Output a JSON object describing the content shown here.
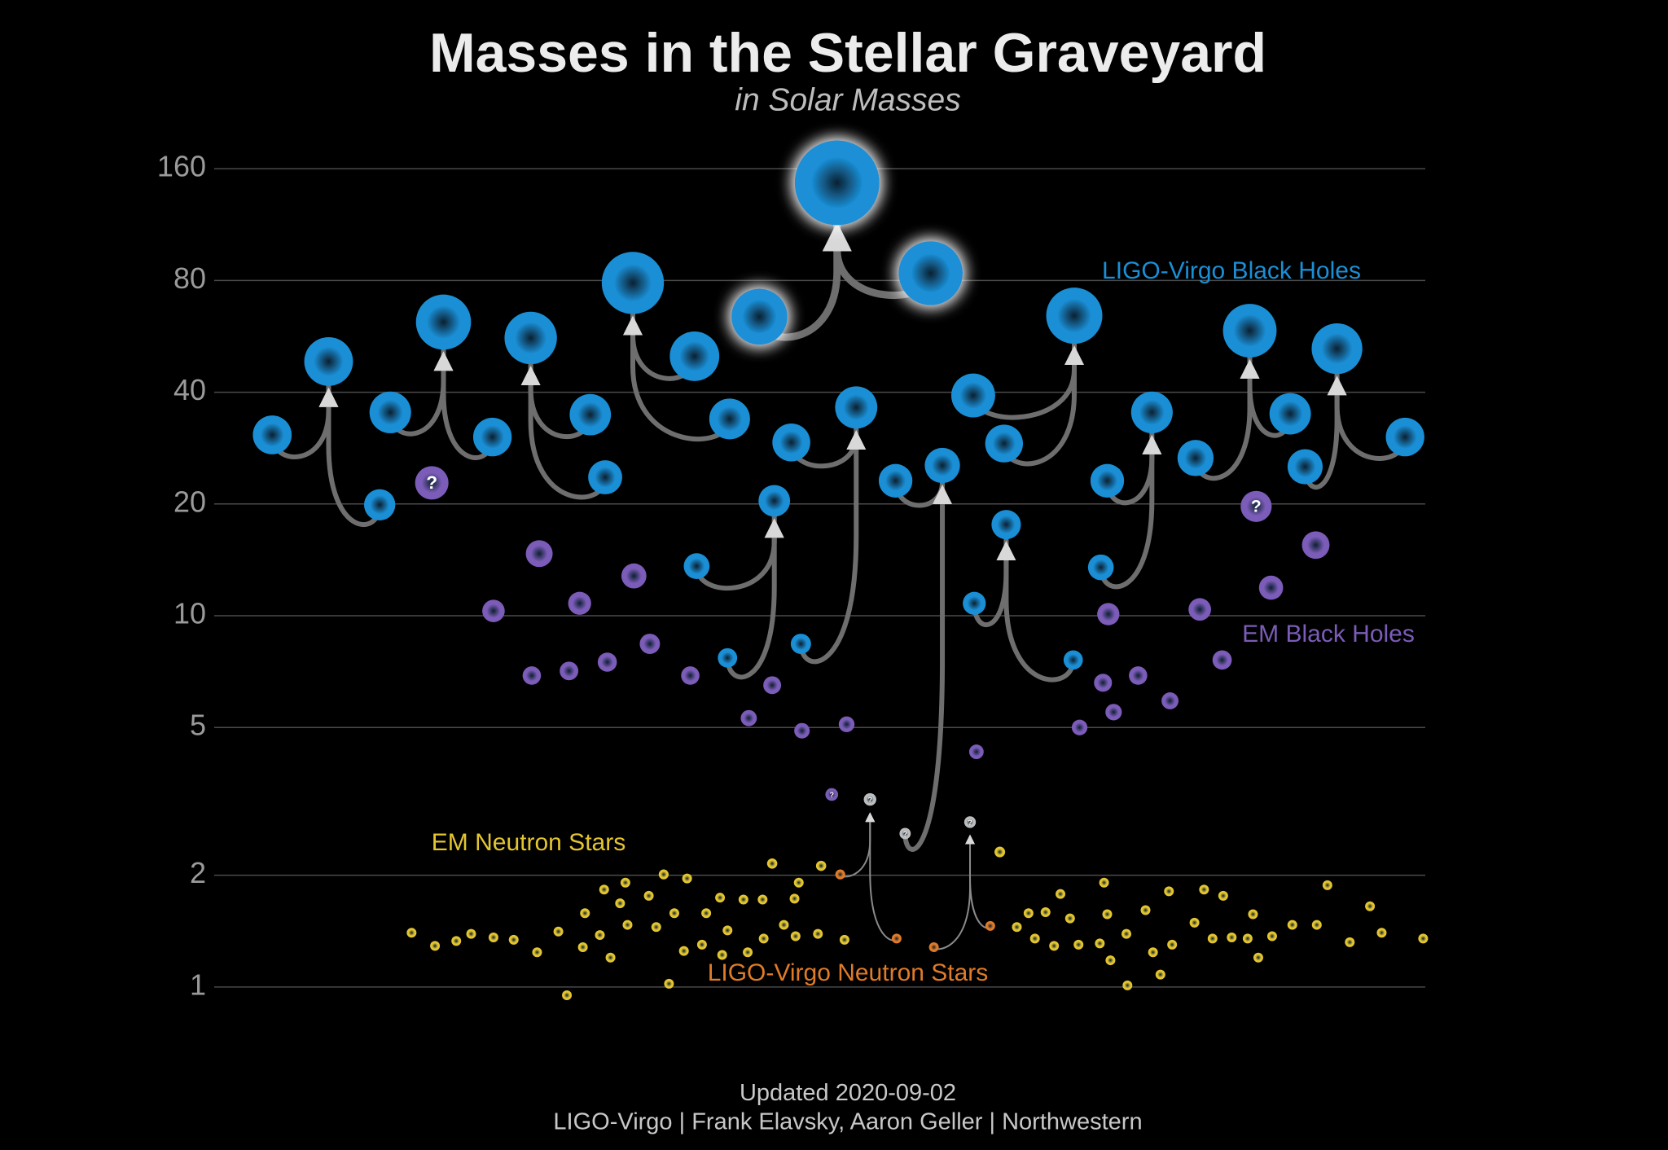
{
  "chart_data": {
    "type": "scatter",
    "title": "Masses in the Stellar Graveyard",
    "subtitle": "in Solar Masses",
    "log_y": true,
    "grid": true,
    "xlim": [
      0,
      116
    ],
    "ylim": [
      0.8,
      200
    ],
    "yticks": [
      1,
      2,
      5,
      10,
      20,
      40,
      80,
      160
    ],
    "series": [
      {
        "name": "LIGO-Virgo Black Holes",
        "color": "#1a8fd6",
        "arrow_color": "#6e6e6e",
        "mergers": [
          {
            "x": [
              7.6,
              17.7,
              12.9
            ],
            "values": [
              30.7,
              19.9,
              48.4
            ]
          },
          {
            "x": [
              18.7,
              28.3,
              23.7
            ],
            "values": [
              35.3,
              30.3,
              61.8
            ]
          },
          {
            "x": [
              37.5,
              38.9,
              31.9
            ],
            "values": [
              34.8,
              23.6,
              56.0
            ]
          },
          {
            "x": [
              47.3,
              50.6,
              41.5
            ],
            "values": [
              50.0,
              33.9,
              78.8
            ]
          },
          {
            "x": [
              53.4,
              69.5,
              60.7
            ],
            "values": [
              63.9,
              83.7,
              146.6
            ],
            "highlight": true
          },
          {
            "x": [
              56.4,
              57.3,
              62.5
            ],
            "values": [
              29.3,
              8.4,
              36.4
            ]
          },
          {
            "x": [
              47.5,
              50.4,
              54.8
            ],
            "values": [
              13.6,
              7.7,
              20.4
            ]
          },
          {
            "x": [
              66.2,
              67.1,
              70.6
            ],
            "values": [
              23.1,
              2.59,
              25.4
            ],
            "colors": [
              null,
              "#bdbdbd",
              null
            ],
            "labels": [
              null,
              "?",
              null
            ]
          },
          {
            "x": [
              73.5,
              76.4,
              83.0
            ],
            "values": [
              39.2,
              29.1,
              64.3
            ]
          },
          {
            "x": [
              73.6,
              82.9,
              76.6
            ],
            "values": [
              10.8,
              7.6,
              17.6
            ]
          },
          {
            "x": [
              86.1,
              85.5,
              90.3
            ],
            "values": [
              23.1,
              13.5,
              35.3
            ]
          },
          {
            "x": [
              94.4,
              103.3,
              99.5
            ],
            "values": [
              26.6,
              35.0,
              58.6
            ]
          },
          {
            "x": [
              104.7,
              114.1,
              107.7
            ],
            "values": [
              25.2,
              30.3,
              52.4
            ]
          }
        ]
      },
      {
        "name": "EM Black Holes",
        "color": "#7b5cb8",
        "x": [
          32.7,
          28.4,
          36.5,
          41.6,
          32.0,
          35.5,
          39.1,
          43.1,
          46.9,
          54.6,
          52.4,
          57.4,
          61.6,
          73.8,
          86.2,
          85.7,
          89.0,
          86.7,
          83.5,
          92.0,
          94.8,
          96.9,
          101.5,
          105.7
        ],
        "values": [
          14.7,
          10.3,
          10.8,
          12.8,
          6.9,
          7.1,
          7.5,
          8.4,
          6.9,
          6.5,
          5.3,
          4.9,
          5.1,
          4.3,
          10.1,
          6.6,
          6.9,
          5.5,
          5.0,
          5.9,
          10.4,
          7.6,
          11.9,
          15.5
        ],
        "unconfirmed": {
          "x": [
            22.6,
            100.1,
            60.2
          ],
          "values": [
            22.8,
            19.7,
            3.3
          ],
          "label": "?"
        }
      },
      {
        "name": "EM Neutron Stars",
        "color": "#e3c530",
        "x": [
          20.7,
          22.9,
          24.9,
          26.3,
          28.4,
          30.3,
          32.5,
          34.5,
          35.3,
          36.8,
          37.0,
          38.4,
          38.8,
          39.4,
          40.3,
          40.8,
          41.0,
          43.0,
          43.7,
          44.4,
          44.9,
          45.4,
          46.3,
          46.6,
          48.0,
          48.4,
          49.7,
          49.9,
          50.4,
          51.9,
          52.3,
          53.7,
          53.8,
          54.6,
          55.7,
          56.7,
          56.8,
          57.1,
          58.9,
          59.2,
          61.4,
          76.0,
          77.6,
          78.7,
          79.3,
          80.3,
          81.1,
          81.7,
          82.6,
          83.4,
          85.4,
          85.8,
          86.1,
          86.4,
          87.9,
          88.0,
          89.7,
          90.4,
          91.1,
          92.2,
          91.9,
          94.3,
          95.2,
          96.0,
          97.0,
          97.8,
          99.3,
          99.8,
          100.3,
          101.6,
          103.5,
          105.8,
          106.8,
          108.9,
          110.8,
          111.9,
          115.8
        ],
        "values": [
          1.4,
          1.29,
          1.33,
          1.39,
          1.36,
          1.34,
          1.24,
          1.41,
          0.95,
          1.28,
          1.58,
          1.38,
          1.83,
          1.2,
          1.68,
          1.91,
          1.47,
          1.76,
          1.45,
          2.01,
          1.02,
          1.58,
          1.25,
          1.96,
          1.3,
          1.58,
          1.74,
          1.22,
          1.42,
          1.72,
          1.24,
          1.72,
          1.35,
          2.15,
          1.47,
          1.73,
          1.37,
          1.91,
          1.39,
          2.12,
          1.34,
          2.31,
          1.45,
          1.58,
          1.35,
          1.59,
          1.29,
          1.78,
          1.53,
          1.3,
          1.31,
          1.91,
          1.57,
          1.18,
          1.39,
          1.01,
          1.61,
          1.24,
          1.08,
          1.3,
          1.81,
          1.49,
          1.83,
          1.35,
          1.76,
          1.36,
          1.35,
          1.57,
          1.2,
          1.37,
          1.47,
          1.47,
          1.88,
          1.32,
          1.65,
          1.4,
          1.35
        ]
      },
      {
        "name": "LIGO-Virgo Neutron Stars",
        "color": "#e07b28",
        "arrow_color": "#8a8a8a",
        "mergers": [
          {
            "x": [
              61.0,
              66.3,
              63.8
            ],
            "values": [
              2.01,
              1.35,
              3.2
            ],
            "colors": [
              null,
              null,
              "#bdbdbd"
            ],
            "labels": [
              null,
              null,
              "?"
            ]
          },
          {
            "x": [
              69.8,
              75.1,
              73.2
            ],
            "values": [
              1.28,
              1.46,
              2.78
            ],
            "colors": [
              null,
              null,
              "#bdbdbd"
            ],
            "labels": [
              null,
              null,
              "?"
            ]
          }
        ]
      }
    ],
    "footer": {
      "updated": "Updated",
      "date": "2020-09-02",
      "credit": "LIGO-Virgo | Frank Elavsky, Aaron Geller | Northwestern"
    }
  }
}
